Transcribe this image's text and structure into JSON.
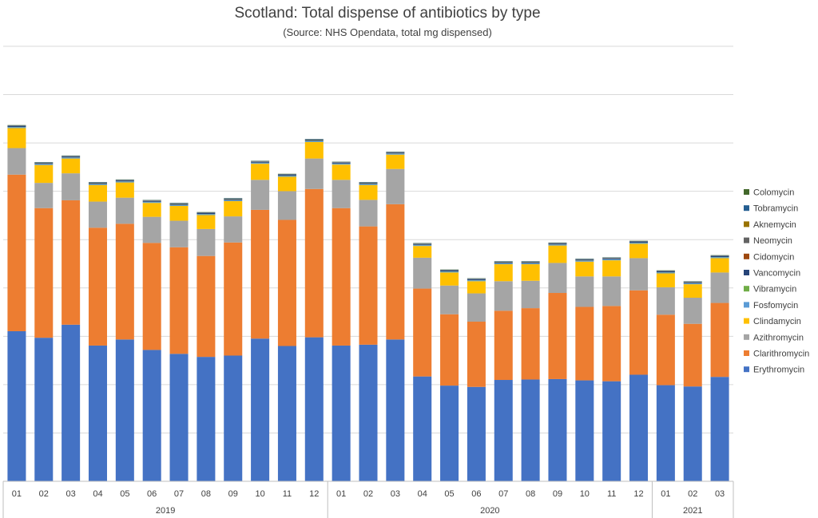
{
  "chart_data": {
    "type": "bar",
    "stacked": true,
    "title": "Scotland: Total dispense of antibiotics by type",
    "subtitle": "(Source: NHS Opendata, total mg dispensed)",
    "xlabel": "",
    "ylabel": "",
    "ylim": [
      0,
      100
    ],
    "grid": true,
    "legend_position": "right",
    "categories": [
      "01",
      "02",
      "03",
      "04",
      "05",
      "06",
      "07",
      "08",
      "09",
      "10",
      "11",
      "12",
      "01",
      "02",
      "03",
      "04",
      "05",
      "06",
      "07",
      "08",
      "09",
      "10",
      "11",
      "12",
      "01",
      "02",
      "03"
    ],
    "groups": [
      {
        "label": "2019",
        "count": 12
      },
      {
        "label": "2020",
        "count": 12
      },
      {
        "label": "2021",
        "count": 3
      }
    ],
    "series": [
      {
        "name": "Erythromycin",
        "color": "#4472C4",
        "values": [
          34.5,
          33.0,
          36.0,
          31.2,
          32.6,
          30.2,
          29.3,
          28.6,
          28.9,
          32.8,
          31.1,
          33.1,
          31.2,
          31.4,
          32.6,
          24.1,
          22.0,
          21.7,
          23.3,
          23.4,
          23.5,
          23.2,
          23.0,
          24.5,
          22.1,
          21.8,
          24.0
        ]
      },
      {
        "name": "Clarithromycin",
        "color": "#ED7D31",
        "values": [
          36.0,
          29.8,
          28.6,
          27.1,
          26.6,
          24.6,
          24.5,
          23.2,
          26.0,
          29.6,
          29.0,
          34.1,
          31.6,
          27.2,
          31.1,
          20.2,
          16.4,
          15.0,
          15.9,
          16.4,
          19.8,
          16.9,
          17.3,
          19.4,
          16.2,
          14.4,
          17.0
        ]
      },
      {
        "name": "Azithromycin",
        "color": "#A5A5A5",
        "values": [
          6.1,
          5.8,
          6.2,
          6.0,
          6.0,
          6.0,
          6.1,
          6.2,
          6.0,
          6.9,
          6.6,
          7.0,
          6.5,
          6.1,
          8.1,
          7.1,
          6.6,
          6.5,
          6.8,
          6.3,
          6.9,
          7.0,
          6.8,
          7.4,
          6.3,
          6.0,
          7.0
        ]
      },
      {
        "name": "Clindamycin",
        "color": "#FFC000",
        "values": [
          4.6,
          4.1,
          3.4,
          3.8,
          3.5,
          3.2,
          3.4,
          3.2,
          3.5,
          3.7,
          3.3,
          3.8,
          3.5,
          3.4,
          3.3,
          2.7,
          3.0,
          2.8,
          3.9,
          3.8,
          4.0,
          3.4,
          3.7,
          3.3,
          3.2,
          3.1,
          3.3
        ]
      },
      {
        "name": "Fosfomycin",
        "color": "#5B9BD5",
        "values": [
          0.2,
          0.2,
          0.2,
          0.2,
          0.2,
          0.2,
          0.2,
          0.2,
          0.2,
          0.2,
          0.2,
          0.2,
          0.2,
          0.2,
          0.2,
          0.2,
          0.2,
          0.2,
          0.2,
          0.2,
          0.2,
          0.2,
          0.2,
          0.2,
          0.2,
          0.2,
          0.2
        ]
      },
      {
        "name": "Vibramycin",
        "color": "#70AD47",
        "values": [
          0.05,
          0.05,
          0.05,
          0.05,
          0.05,
          0.05,
          0.05,
          0.05,
          0.05,
          0.05,
          0.05,
          0.05,
          0.05,
          0.05,
          0.05,
          0.05,
          0.05,
          0.05,
          0.05,
          0.05,
          0.05,
          0.05,
          0.05,
          0.05,
          0.05,
          0.05,
          0.05
        ]
      },
      {
        "name": "Vancomycin",
        "color": "#264478",
        "values": [
          0.2,
          0.2,
          0.2,
          0.2,
          0.2,
          0.2,
          0.2,
          0.2,
          0.2,
          0.2,
          0.2,
          0.2,
          0.2,
          0.2,
          0.2,
          0.2,
          0.2,
          0.2,
          0.2,
          0.2,
          0.2,
          0.2,
          0.2,
          0.2,
          0.2,
          0.2,
          0.2
        ]
      },
      {
        "name": "Cidomycin",
        "color": "#9E480E",
        "values": [
          0.02,
          0.02,
          0.02,
          0.02,
          0.02,
          0.02,
          0.02,
          0.02,
          0.02,
          0.02,
          0.02,
          0.02,
          0.02,
          0.02,
          0.02,
          0.02,
          0.02,
          0.02,
          0.02,
          0.02,
          0.02,
          0.02,
          0.02,
          0.02,
          0.02,
          0.02,
          0.02
        ]
      },
      {
        "name": "Neomycin",
        "color": "#636363",
        "values": [
          0.05,
          0.05,
          0.05,
          0.05,
          0.05,
          0.05,
          0.05,
          0.05,
          0.05,
          0.05,
          0.05,
          0.05,
          0.05,
          0.05,
          0.05,
          0.05,
          0.05,
          0.05,
          0.05,
          0.05,
          0.05,
          0.05,
          0.05,
          0.05,
          0.05,
          0.05,
          0.05
        ]
      },
      {
        "name": "Aknemycin",
        "color": "#997300",
        "values": [
          0.02,
          0.02,
          0.02,
          0.02,
          0.02,
          0.02,
          0.02,
          0.02,
          0.02,
          0.02,
          0.02,
          0.02,
          0.02,
          0.02,
          0.02,
          0.02,
          0.02,
          0.02,
          0.02,
          0.02,
          0.02,
          0.02,
          0.02,
          0.02,
          0.02,
          0.02,
          0.02
        ]
      },
      {
        "name": "Tobramycin",
        "color": "#255E91",
        "values": [
          0.1,
          0.1,
          0.1,
          0.1,
          0.1,
          0.1,
          0.1,
          0.1,
          0.1,
          0.1,
          0.1,
          0.1,
          0.1,
          0.1,
          0.1,
          0.1,
          0.1,
          0.1,
          0.1,
          0.1,
          0.1,
          0.1,
          0.1,
          0.1,
          0.1,
          0.1,
          0.1
        ]
      },
      {
        "name": "Colomycin",
        "color": "#43682B",
        "values": [
          0.05,
          0.05,
          0.05,
          0.05,
          0.05,
          0.05,
          0.05,
          0.05,
          0.05,
          0.05,
          0.05,
          0.05,
          0.05,
          0.05,
          0.05,
          0.05,
          0.05,
          0.05,
          0.05,
          0.05,
          0.05,
          0.05,
          0.05,
          0.05,
          0.05,
          0.05,
          0.05
        ]
      }
    ]
  }
}
